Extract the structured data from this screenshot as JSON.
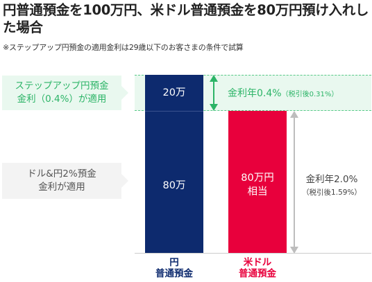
{
  "title": "円普通預金を100万円、米ドル普通預金を80万円預け入れした場合",
  "note": "※ステップアップ円預金の適用金利は29歳以下のお客さまの条件で試算",
  "labels": {
    "stepup_line1": "ステップアップ円預金",
    "stepup_line2": "金利（0.4%）が適用",
    "dual_line1": "ドル&円2%預金",
    "dual_line2": "金利が適用"
  },
  "annotations": {
    "stepup_rate": "金利年0.4%",
    "stepup_after_tax": "（税引後0.31%）",
    "dual_rate": "金利年2.0%",
    "dual_after_tax": "（税引後1.59%）"
  },
  "colors": {
    "navy": "#0d2a6e",
    "red": "#e8003c",
    "green": "#2cb467",
    "gray": "#bdbdbd"
  },
  "chart_data": {
    "type": "bar",
    "stacked": true,
    "unit": "万円",
    "categories": [
      "円\n普通預金",
      "米ドル\n普通預金"
    ],
    "bars": [
      {
        "category": "円 普通預金",
        "segments": [
          {
            "value": 80,
            "label": "80万"
          },
          {
            "value": 20,
            "label": "20万"
          }
        ]
      },
      {
        "category": "米ドル 普通預金",
        "segments": [
          {
            "value": 80,
            "label": "80万円\n相当"
          }
        ]
      }
    ],
    "x_labels": [
      {
        "line1": "円",
        "line2": "普通預金",
        "color": "#0d2a6e"
      },
      {
        "line1": "米ドル",
        "line2": "普通預金",
        "color": "#e8003c"
      }
    ]
  }
}
